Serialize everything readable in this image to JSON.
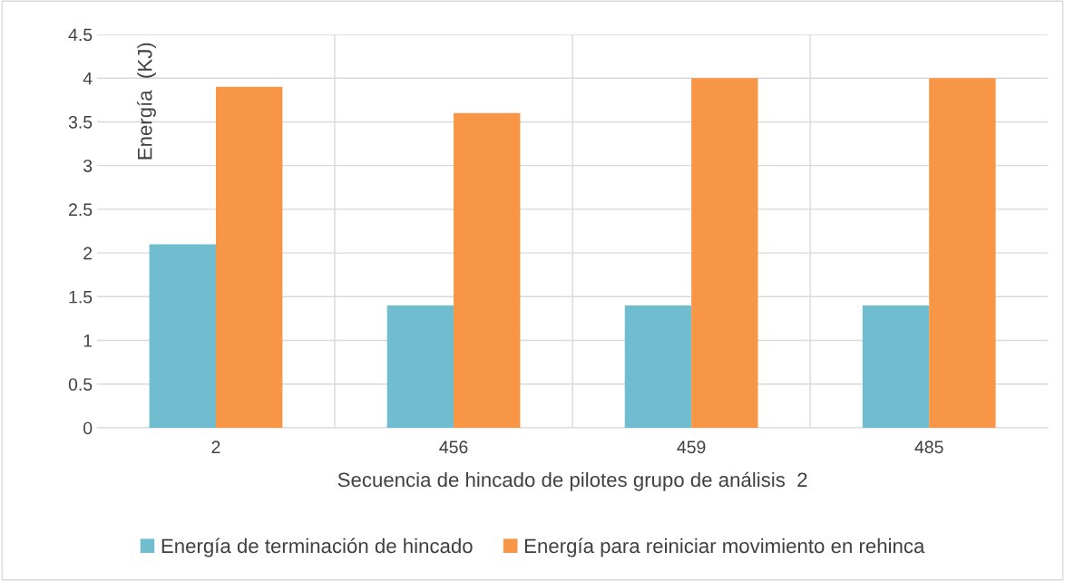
{
  "chart_data": {
    "type": "bar",
    "xlabel": "Secuencia de hincado de pilotes grupo de análisis  2",
    "ylabel": "Energía  (KJ)",
    "categories": [
      "2",
      "456",
      "459",
      "485"
    ],
    "series": [
      {
        "name": "Energía de terminación de hincado",
        "color": "#70bdd0",
        "values": [
          2.1,
          1.4,
          1.4,
          1.4
        ]
      },
      {
        "name": "Energía para reiniciar movimiento en rehinca",
        "color": "#f79646",
        "values": [
          3.9,
          3.6,
          4.0,
          4.0
        ]
      }
    ],
    "ylim": [
      0,
      4.5
    ],
    "yticks": [
      0,
      0.5,
      1,
      1.5,
      2,
      2.5,
      3,
      3.5,
      4,
      4.5
    ],
    "grid": true,
    "legend": "bottom"
  }
}
